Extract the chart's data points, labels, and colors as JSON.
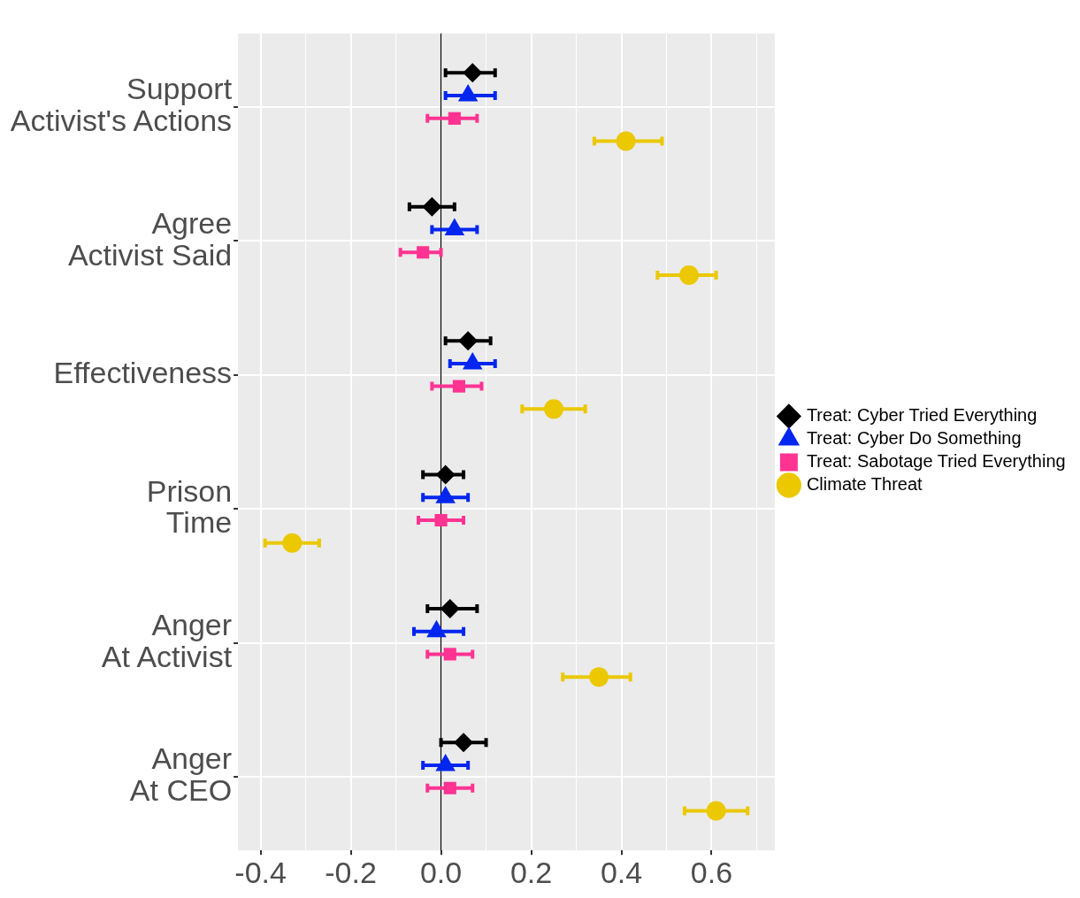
{
  "chart_data": {
    "type": "scatter",
    "orientation": "horizontal",
    "categories": [
      "Support Activist's Actions",
      "Agree Activist Said",
      "Effectiveness",
      "Prison Time",
      "Anger At Activist",
      "Anger At CEO"
    ],
    "series": [
      {
        "name": "Treat: Cyber Tried Everything",
        "color": "#000000",
        "marker": "diamond",
        "values": [
          0.07,
          -0.02,
          0.06,
          0.01,
          0.02,
          0.05
        ],
        "errors": [
          [
            0.01,
            0.12
          ],
          [
            -0.07,
            0.03
          ],
          [
            0.01,
            0.11
          ],
          [
            -0.04,
            0.05
          ],
          [
            -0.03,
            0.08
          ],
          [
            0.0,
            0.1
          ]
        ]
      },
      {
        "name": "Treat: Cyber Do Something",
        "color": "#0026f0",
        "marker": "triangle",
        "values": [
          0.06,
          0.03,
          0.07,
          0.01,
          -0.01,
          0.01
        ],
        "errors": [
          [
            0.01,
            0.12
          ],
          [
            -0.02,
            0.08
          ],
          [
            0.02,
            0.12
          ],
          [
            -0.04,
            0.06
          ],
          [
            -0.06,
            0.05
          ],
          [
            -0.04,
            0.06
          ]
        ]
      },
      {
        "name": "Treat: Sabotage Tried Everything",
        "color": "#ff3392",
        "marker": "square",
        "values": [
          0.03,
          -0.04,
          0.04,
          0.0,
          0.02,
          0.02
        ],
        "errors": [
          [
            -0.03,
            0.08
          ],
          [
            -0.09,
            0.0
          ],
          [
            -0.02,
            0.09
          ],
          [
            -0.05,
            0.05
          ],
          [
            -0.03,
            0.07
          ],
          [
            -0.03,
            0.07
          ]
        ]
      },
      {
        "name": "Climate Threat",
        "color": "#ebc800",
        "marker": "circle",
        "values": [
          0.41,
          0.55,
          0.25,
          -0.33,
          0.35,
          0.61
        ],
        "errors": [
          [
            0.34,
            0.49
          ],
          [
            0.48,
            0.61
          ],
          [
            0.18,
            0.32
          ],
          [
            -0.39,
            -0.27
          ],
          [
            0.27,
            0.42
          ],
          [
            0.54,
            0.68
          ]
        ]
      }
    ],
    "xlim": [
      -0.45,
      0.74
    ],
    "xticks": [
      -0.4,
      -0.2,
      {
        "value": 0,
        "label": "0.0"
      },
      0.2,
      0.4,
      0.6
    ],
    "ref_lines": [
      {
        "axis": "x",
        "value": 0,
        "color": "#000000"
      }
    ],
    "grid": true,
    "legend": "right"
  }
}
